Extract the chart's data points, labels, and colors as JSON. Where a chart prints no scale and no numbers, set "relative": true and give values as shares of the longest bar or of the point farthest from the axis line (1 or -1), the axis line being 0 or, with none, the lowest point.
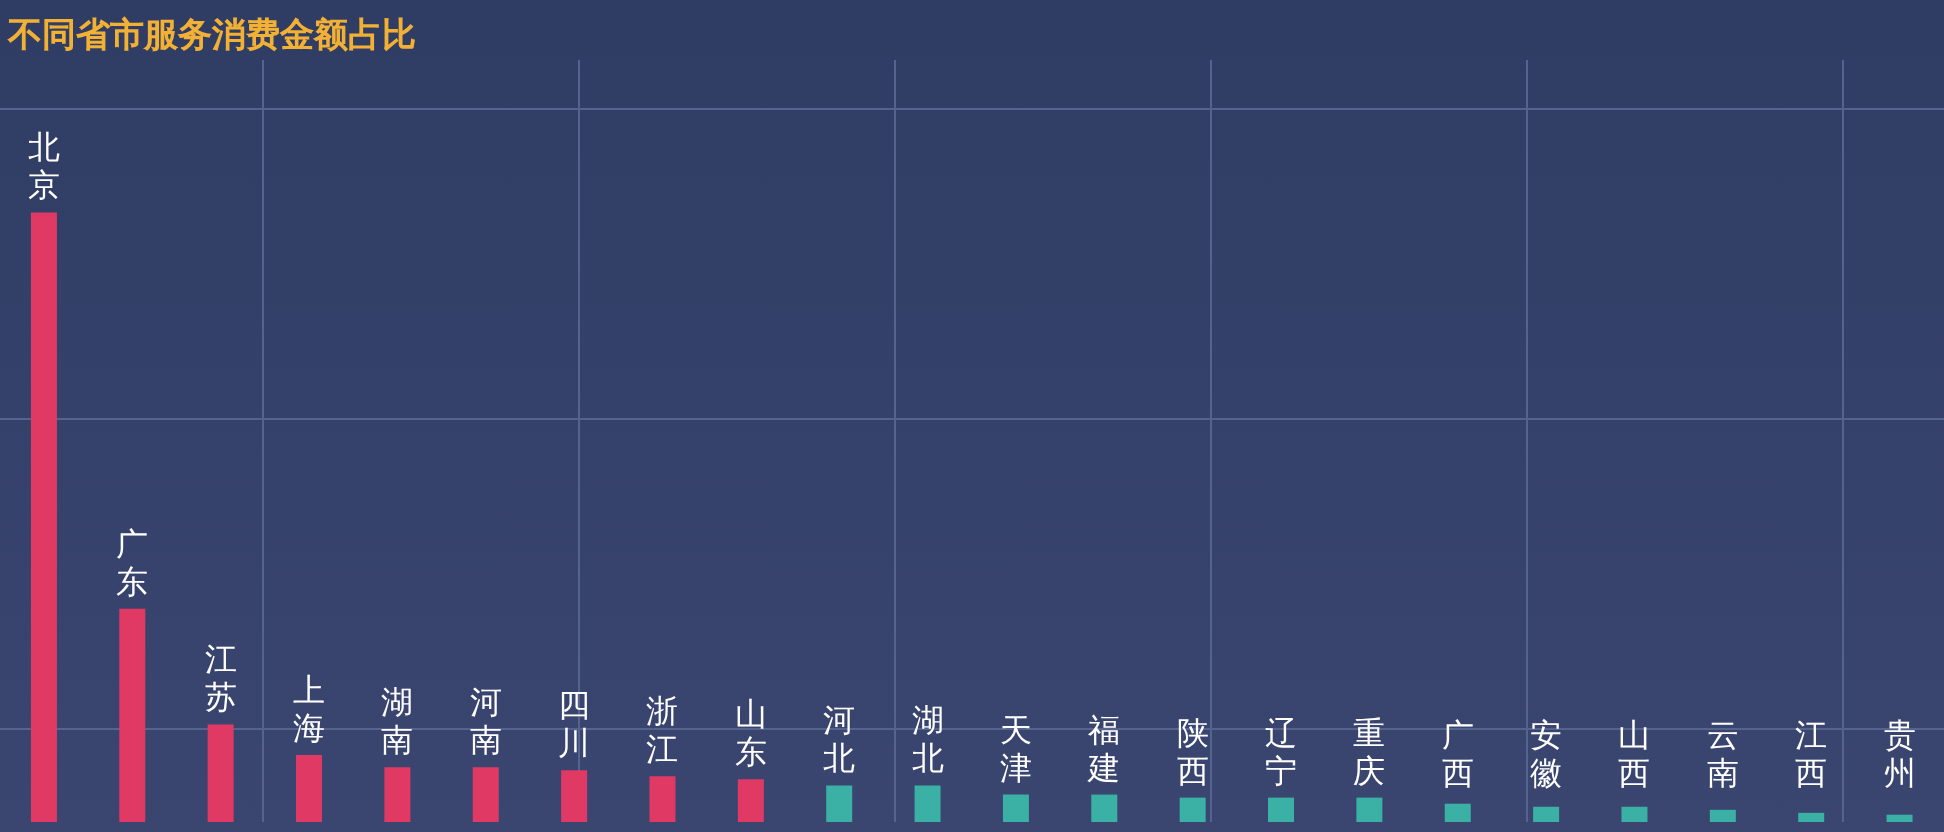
{
  "chart_data": {
    "type": "bar",
    "title": "不同省市服务消费金额占比",
    "relative": true,
    "categories": [
      "北京",
      "广东",
      "江苏",
      "上海",
      "湖南",
      "河南",
      "四川",
      "浙江",
      "山东",
      "河北",
      "湖北",
      "天津",
      "福建",
      "陕西",
      "辽宁",
      "重庆",
      "广西",
      "安徽",
      "山西",
      "云南",
      "江西",
      "贵州"
    ],
    "values": [
      1,
      0.35,
      0.16,
      0.11,
      0.09,
      0.09,
      0.085,
      0.075,
      0.07,
      0.06,
      0.06,
      0.045,
      0.045,
      0.04,
      0.04,
      0.04,
      0.03,
      0.025,
      0.025,
      0.02,
      0.015,
      0.012
    ],
    "colors": [
      "#e03a64",
      "#e03a64",
      "#e03a64",
      "#e03a64",
      "#e03a64",
      "#e03a64",
      "#e03a64",
      "#e03a64",
      "#e03a64",
      "#3bb0a4",
      "#3bb0a4",
      "#3bb0a4",
      "#3bb0a4",
      "#3bb0a4",
      "#3bb0a4",
      "#3bb0a4",
      "#3bb0a4",
      "#3bb0a4",
      "#3bb0a4",
      "#3bb0a4",
      "#3bb0a4",
      "#3bb0a4"
    ]
  }
}
